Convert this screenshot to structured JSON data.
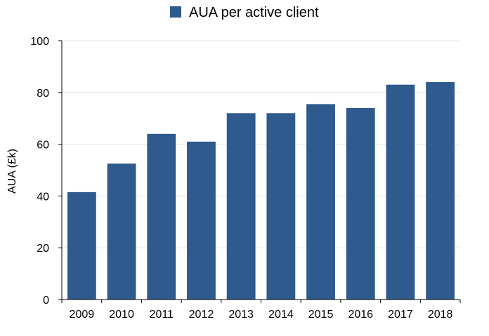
{
  "chart_data": {
    "type": "bar",
    "title": "",
    "xlabel": "",
    "ylabel": "AUA (£k)",
    "categories": [
      "2009",
      "2010",
      "2011",
      "2012",
      "2013",
      "2014",
      "2015",
      "2016",
      "2017",
      "2018"
    ],
    "series": [
      {
        "name": "AUA per active client",
        "color": "#2e5a8d",
        "values": [
          41.5,
          52.5,
          64,
          61,
          72,
          72,
          75.5,
          74,
          83,
          84
        ]
      }
    ],
    "ylim": [
      0,
      100
    ],
    "yticks": [
      "0",
      "20",
      "40",
      "60",
      "80",
      "100"
    ],
    "grid": true,
    "legend_position": "top-center"
  }
}
